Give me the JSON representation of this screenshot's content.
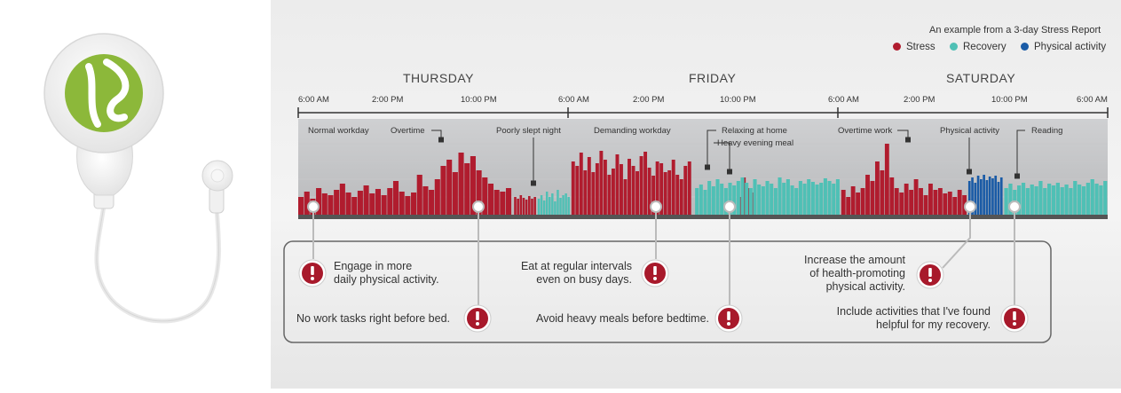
{
  "header": {
    "title": "An example from a 3-day Stress Report"
  },
  "legend": [
    {
      "label": "Stress",
      "color": "#b01c2e"
    },
    {
      "label": "Recovery",
      "color": "#4fc0b5"
    },
    {
      "label": "Physical activity",
      "color": "#1a5ba6"
    }
  ],
  "days": [
    "THURSDAY",
    "FRIDAY",
    "SATURDAY"
  ],
  "time_ticks": [
    "6:00 AM",
    "2:00 PM",
    "10:00 PM",
    "6:00 AM",
    "2:00 PM",
    "10:00 PM",
    "6:00 AM",
    "2:00 PM",
    "10:00 PM",
    "6:00 AM"
  ],
  "chart_data": {
    "type": "bar",
    "title": "An example from a 3-day Stress Report",
    "x_range_hours": [
      0,
      72
    ],
    "ylim": [
      0,
      100
    ],
    "series": [
      {
        "name": "Stress",
        "color": "#b01c2e",
        "segments": [
          {
            "x": [
              0,
              19
            ],
            "levels": [
              20,
              26,
              18,
              30,
              24,
              22,
              28,
              35,
              25,
              20,
              27,
              33,
              24,
              29,
              22,
              30,
              38,
              26,
              21,
              25,
              45,
              32,
              28,
              40,
              55,
              62,
              48,
              70,
              58,
              66,
              50,
              42,
              35,
              28,
              26,
              30
            ]
          },
          {
            "x": [
              19.2,
              21.2
            ],
            "levels": [
              20,
              18,
              22,
              19,
              17,
              21,
              18,
              20
            ]
          },
          {
            "x": [
              24.3,
              35
            ],
            "levels": [
              60,
              55,
              70,
              50,
              65,
              48,
              58,
              72,
              62,
              45,
              52,
              68,
              57,
              40,
              63,
              55,
              49,
              66,
              71,
              53,
              44,
              60,
              58,
              48,
              50,
              62,
              45,
              40,
              55,
              60
            ]
          },
          {
            "x": [
              39.2,
              40.5
            ],
            "levels": [
              20,
              42,
              30,
              25
            ]
          },
          {
            "x": [
              48.3,
              59.5
            ],
            "levels": [
              28,
              20,
              32,
              25,
              30,
              45,
              38,
              60,
              50,
              80,
              42,
              30,
              25,
              35,
              28,
              40,
              30,
              22,
              35,
              28,
              30,
              24,
              26,
              20,
              28,
              22
            ]
          }
        ]
      },
      {
        "name": "Recovery",
        "color": "#4fc0b5",
        "segments": [
          {
            "x": [
              21.3,
              24.2
            ],
            "levels": [
              18,
              22,
              16,
              26,
              20,
              24,
              15,
              28,
              19,
              22,
              24,
              20
            ]
          },
          {
            "x": [
              35.3,
              48.2
            ],
            "levels": [
              30,
              34,
              28,
              38,
              32,
              40,
              35,
              30,
              36,
              33,
              38,
              42,
              36,
              30,
              40,
              34,
              32,
              38,
              35,
              30,
              42,
              36,
              40,
              33,
              30,
              38,
              35,
              40,
              37,
              34,
              36,
              41,
              38,
              35,
              40
            ]
          },
          {
            "x": [
              62.8,
              72
            ],
            "levels": [
              30,
              35,
              28,
              33,
              36,
              30,
              34,
              32,
              38,
              30,
              35,
              33,
              36,
              31,
              34,
              30,
              38,
              34,
              32,
              36,
              40,
              35,
              33,
              38
            ]
          }
        ]
      },
      {
        "name": "Physical activity",
        "color": "#1a5ba6",
        "segments": [
          {
            "x": [
              59.6,
              62.7
            ],
            "levels": [
              38,
              42,
              36,
              44,
              40,
              45,
              39,
              43,
              41,
              44,
              37,
              42
            ]
          }
        ]
      }
    ],
    "annotations": [
      {
        "label": "Normal workday",
        "hour": 3
      },
      {
        "label": "Overtime",
        "hour": 13
      },
      {
        "label": "Poorly slept night",
        "hour": 21
      },
      {
        "label": "Demanding workday",
        "hour": 28
      },
      {
        "label": "Relaxing at home",
        "hour": 36
      },
      {
        "label": "Heavy evening meal",
        "hour": 39
      },
      {
        "label": "Overtime work",
        "hour": 52
      },
      {
        "label": "Physical activity",
        "hour": 60
      },
      {
        "label": "Reading",
        "hour": 64
      }
    ]
  },
  "recommendations": [
    {
      "text_lines": [
        "Engage in more",
        "daily physical activity."
      ]
    },
    {
      "text_lines": [
        "No work tasks right before bed."
      ]
    },
    {
      "text_lines": [
        "Eat at regular intervals",
        "even on busy days."
      ]
    },
    {
      "text_lines": [
        "Avoid heavy meals before bedtime."
      ]
    },
    {
      "text_lines": [
        "Increase the amount",
        "of health-promoting",
        "physical activity."
      ]
    },
    {
      "text_lines": [
        "Include activities that I've found",
        "helpful for my recovery."
      ]
    }
  ],
  "icons": {
    "warning": "exclamation-icon",
    "device": "heart-rate-monitor-icon"
  }
}
